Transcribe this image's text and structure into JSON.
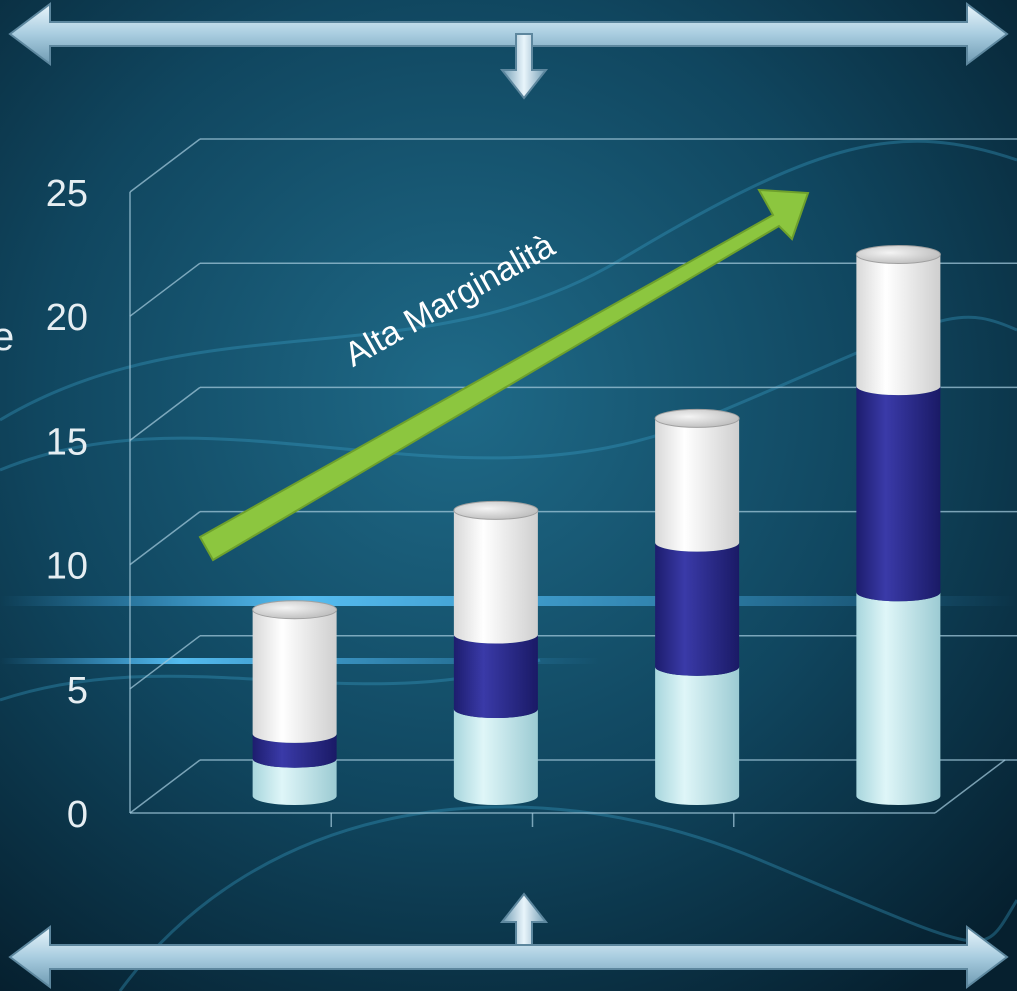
{
  "chart_data": {
    "type": "bar",
    "stacked": true,
    "style": "3d-cylinder",
    "title": "",
    "ylabel_visible_fragment": "e",
    "categories": [
      "",
      "",
      "",
      ""
    ],
    "series": [
      {
        "color": "#c6eef2",
        "values": [
          1.5,
          3.5,
          5.2,
          8.2
        ]
      },
      {
        "color": "#2c2c8c",
        "values": [
          1.0,
          3.0,
          5.0,
          8.3
        ]
      },
      {
        "color": "#ffffff",
        "values": [
          5.0,
          5.0,
          5.0,
          5.3
        ]
      }
    ],
    "ylim": [
      0,
      25
    ],
    "yticks": [
      "0",
      "5",
      "10",
      "15",
      "20",
      "25"
    ],
    "grid": true,
    "annotation": {
      "text": "Alta Marginalità",
      "color": "#8cc63f"
    }
  },
  "decorations": {
    "top_arrow": "double-arrow-with-down-stem",
    "bottom_arrow": "double-arrow-with-up-stem",
    "arrow_color": "#a9cde0"
  }
}
